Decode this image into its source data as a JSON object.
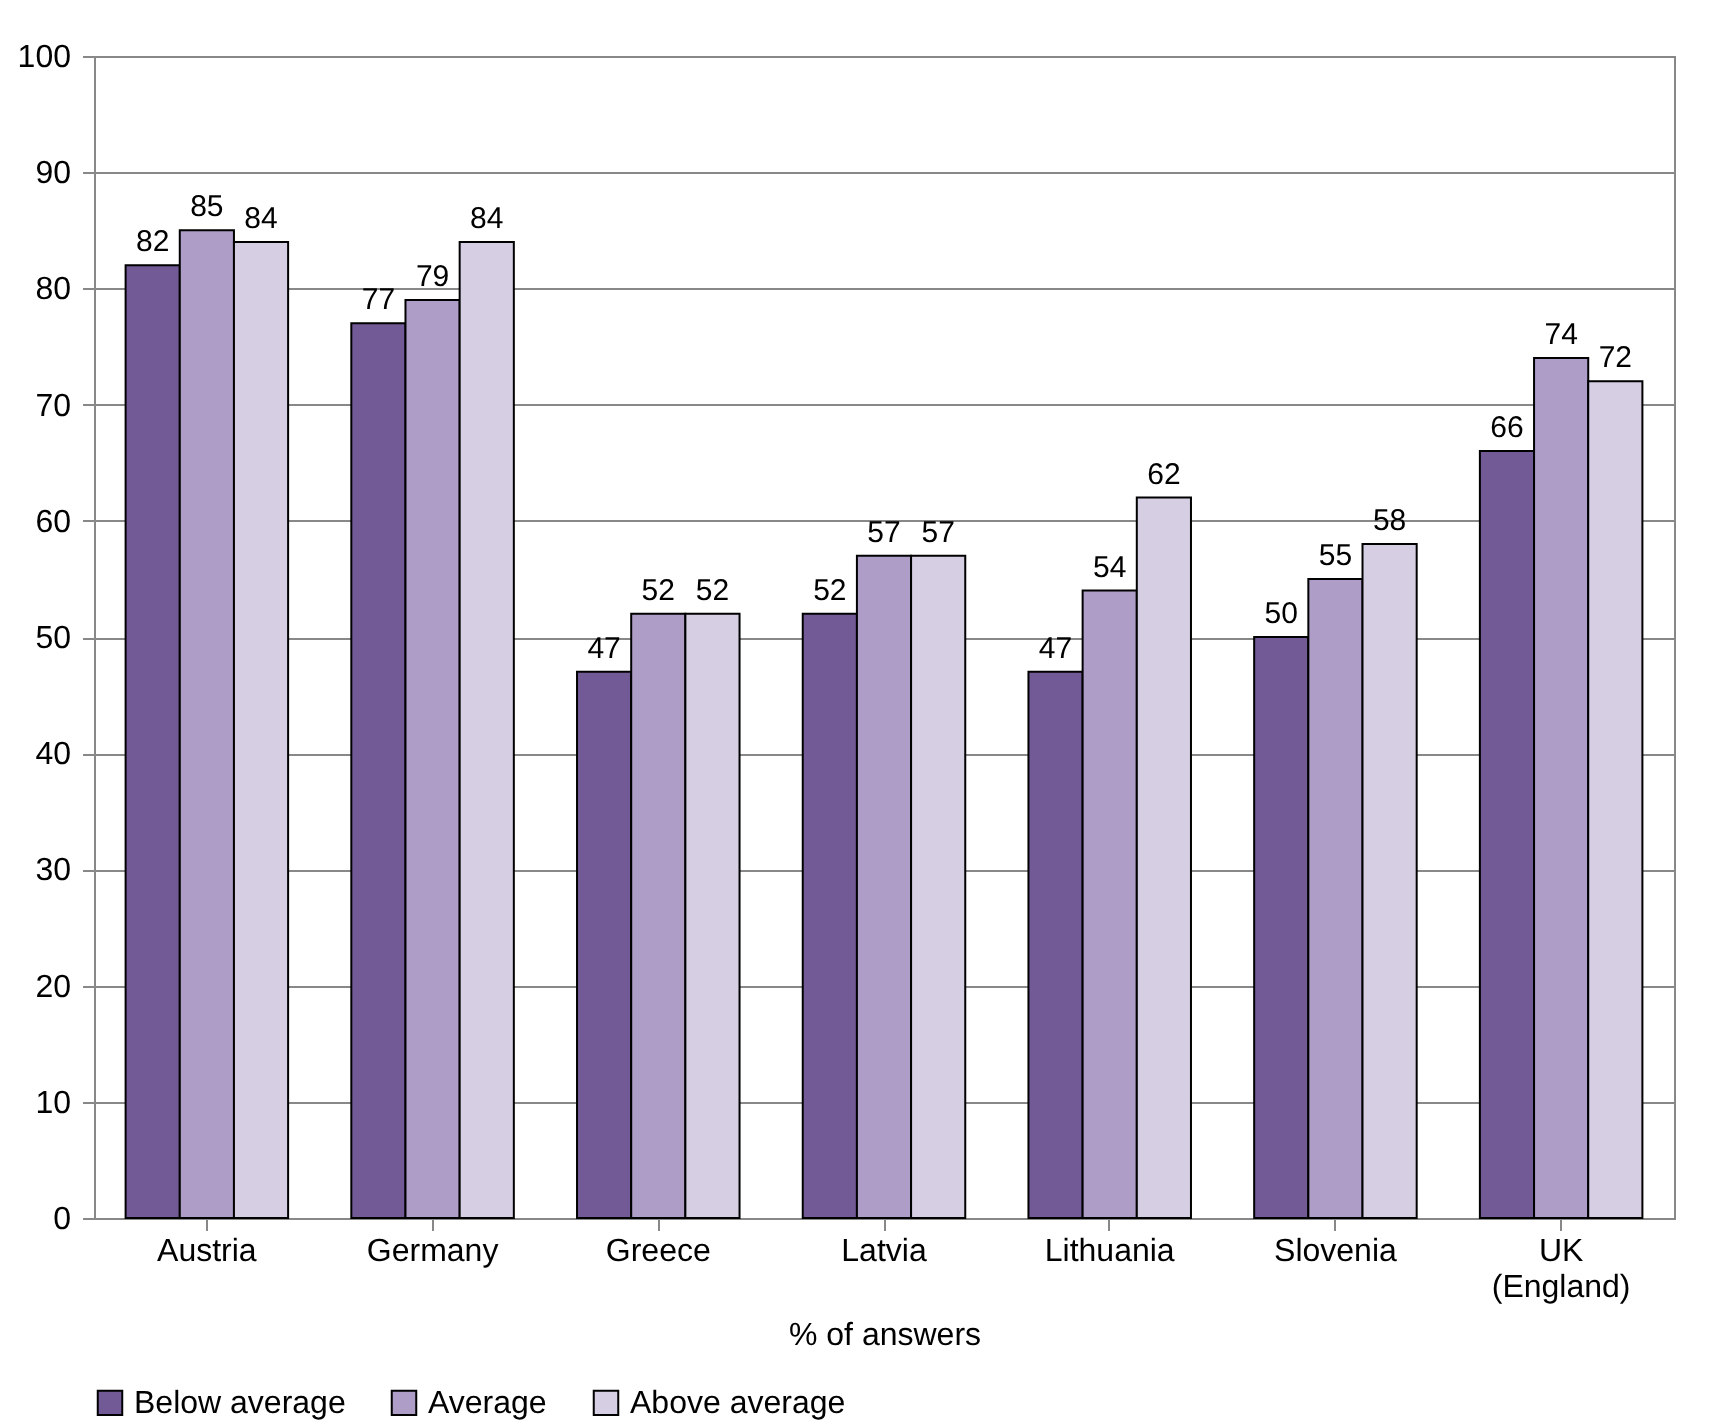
{
  "chart_data": {
    "type": "bar",
    "xlabel": "% of answers",
    "categories": [
      "Austria",
      "Germany",
      "Greece",
      "Latvia",
      "Lithuania",
      "Slovenia",
      "UK\n(England)"
    ],
    "series": [
      {
        "name": "Below average",
        "color": "#725a96",
        "values": [
          82,
          77,
          47,
          52,
          47,
          50,
          66
        ]
      },
      {
        "name": "Average",
        "color": "#ae9dc6",
        "values": [
          85,
          79,
          52,
          57,
          54,
          55,
          74
        ]
      },
      {
        "name": "Above average",
        "color": "#d6cfe3",
        "values": [
          84,
          84,
          52,
          57,
          62,
          58,
          72
        ]
      }
    ],
    "ylim": [
      0,
      100
    ],
    "yticks": [
      0,
      10,
      20,
      30,
      40,
      50,
      60,
      70,
      80,
      90,
      100
    ],
    "grid": "y",
    "legend": "bottom",
    "data_labels": true
  }
}
